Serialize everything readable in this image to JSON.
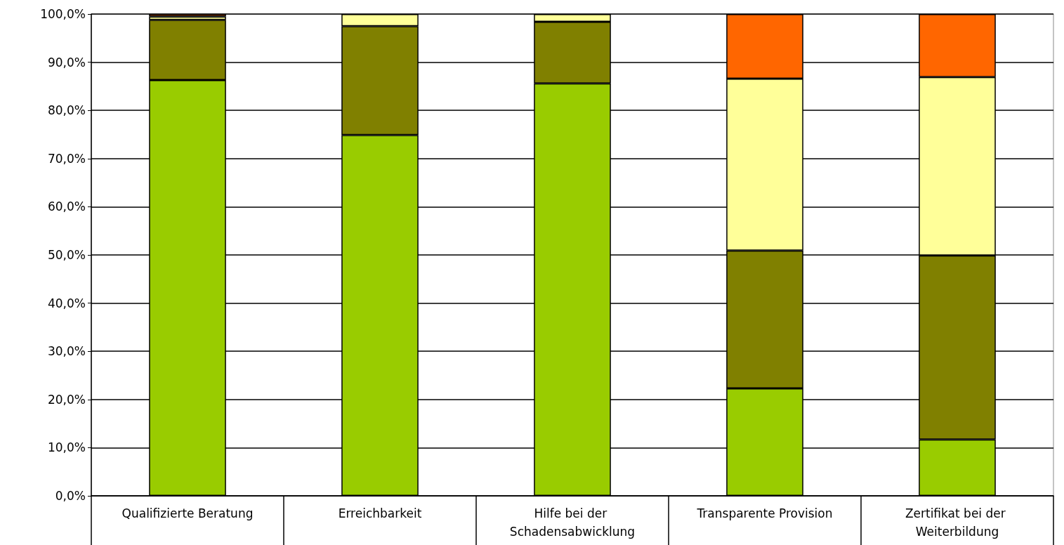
{
  "chart_data": {
    "type": "bar",
    "stacked": true,
    "categories": [
      "Qualifizierte Beratung",
      "Erreichbarkeit",
      "Hilfe bei der Schadensabwicklung",
      "Transparente Provision",
      "Zertifikat bei der Weiterbildung"
    ],
    "series": [
      {
        "color": "#99cc00",
        "values": [
          86.3,
          74.9,
          85.6,
          22.3,
          11.7
        ]
      },
      {
        "color": "#808000",
        "values": [
          12.5,
          22.6,
          12.8,
          28.6,
          38.2
        ]
      },
      {
        "color": "#ffff99",
        "values": [
          0.7,
          2.5,
          1.6,
          35.7,
          37.0
        ]
      },
      {
        "color": "#ff6600",
        "values": [
          0.5,
          null,
          null,
          13.4,
          13.1
        ]
      }
    ],
    "ylim": [
      0,
      100
    ],
    "yticks": [
      {
        "value": 0,
        "label": "0,0%"
      },
      {
        "value": 10,
        "label": "10,0%"
      },
      {
        "value": 20,
        "label": "20,0%"
      },
      {
        "value": 30,
        "label": "30,0%"
      },
      {
        "value": 40,
        "label": "40,0%"
      },
      {
        "value": 50,
        "label": "50,0%"
      },
      {
        "value": 60,
        "label": "60,0%"
      },
      {
        "value": 70,
        "label": "70,0%"
      },
      {
        "value": 80,
        "label": "80,0%"
      },
      {
        "value": 90,
        "label": "90,0%"
      },
      {
        "value": 100,
        "label": "100,0%"
      }
    ],
    "grid": "y"
  }
}
